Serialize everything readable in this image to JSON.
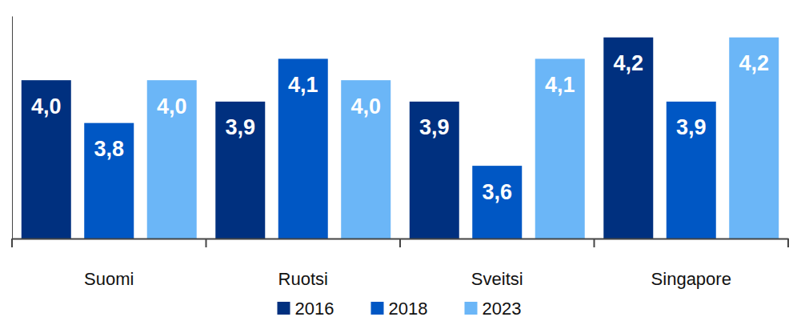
{
  "chart_data": {
    "type": "bar",
    "categories": [
      "Suomi",
      "Ruotsi",
      "Sveitsi",
      "Singapore"
    ],
    "series": [
      {
        "name": "2016",
        "color": "#00307f",
        "values": [
          4.0,
          3.9,
          3.9,
          4.2
        ],
        "value_labels": [
          "4,0",
          "3,9",
          "3,9",
          "4,2"
        ]
      },
      {
        "name": "2018",
        "color": "#0057c4",
        "values": [
          3.8,
          4.1,
          3.6,
          3.9
        ],
        "value_labels": [
          "3,8",
          "4,1",
          "3,6",
          "3,9"
        ]
      },
      {
        "name": "2023",
        "color": "#6bb6f7",
        "values": [
          4.0,
          4.0,
          4.1,
          4.2
        ],
        "value_labels": [
          "4,0",
          "4,0",
          "4,1",
          "4,2"
        ]
      }
    ],
    "ylim": [
      3.26,
      4.3
    ],
    "yticks": [],
    "tick_labels": "x",
    "data_labels": true,
    "legend": "bottom",
    "grid": false
  }
}
